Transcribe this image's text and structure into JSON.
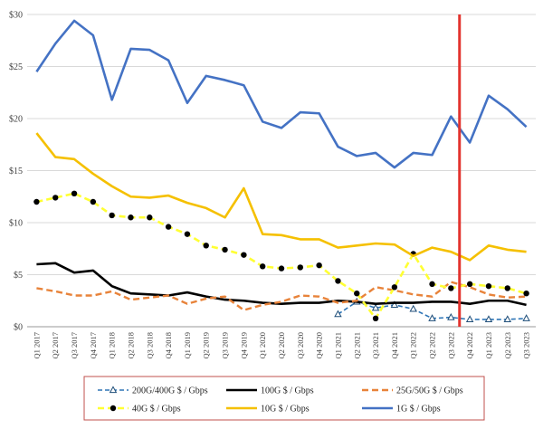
{
  "chart_data": {
    "type": "line",
    "title": "",
    "xlabel": "",
    "ylabel": "",
    "ylim": [
      0,
      30
    ],
    "yticks": [
      0,
      5,
      10,
      15,
      20,
      25,
      30
    ],
    "ytick_labels": [
      "$0",
      "$5",
      "$10",
      "$15",
      "$20",
      "$25",
      "$30"
    ],
    "grid": "horizontal",
    "legend_position": "bottom",
    "categories": [
      "Q1 2017",
      "Q2 2017",
      "Q3 2017",
      "Q4 2017",
      "Q1 2018",
      "Q2 2018",
      "Q3 2018",
      "Q4 2018",
      "Q1 2019",
      "Q2 2019",
      "Q3 2019",
      "Q4 2019",
      "Q1 2020",
      "Q2 2020",
      "Q3 2020",
      "Q4 2020",
      "Q1 2021",
      "Q2 2021",
      "Q3 2021",
      "Q4 2021",
      "Q1 2022",
      "Q2 2022",
      "Q3 2022",
      "Q4 2022",
      "Q1 2023",
      "Q2 2023",
      "Q3 2023"
    ],
    "marker_line": {
      "after_category": "Q3 2022",
      "color": "#e3342f"
    },
    "series": [
      {
        "name": "200G/400G $ / Gbps",
        "color": "#2e75b6",
        "style": "dashed-triangle",
        "values": [
          null,
          null,
          null,
          null,
          null,
          null,
          null,
          null,
          null,
          null,
          null,
          null,
          null,
          null,
          null,
          null,
          1.2,
          2.4,
          1.8,
          2.1,
          1.7,
          0.8,
          0.9,
          0.7,
          0.7,
          0.7,
          0.8
        ]
      },
      {
        "name": "100G $ / Gbps",
        "color": "#000000",
        "style": "solid",
        "values": [
          6.0,
          6.1,
          5.2,
          5.4,
          3.9,
          3.2,
          3.1,
          3.0,
          3.3,
          2.9,
          2.6,
          2.5,
          2.3,
          2.2,
          2.3,
          2.3,
          2.5,
          2.4,
          2.2,
          2.3,
          2.3,
          2.4,
          2.4,
          2.2,
          2.5,
          2.5,
          2.1
        ]
      },
      {
        "name": "25G/50G $ / Gbps",
        "color": "#e8833a",
        "style": "dashed",
        "values": [
          3.7,
          3.4,
          3.0,
          3.0,
          3.4,
          2.6,
          2.8,
          3.0,
          2.2,
          2.7,
          2.9,
          1.6,
          2.1,
          2.4,
          3.0,
          2.9,
          2.3,
          2.5,
          3.8,
          3.5,
          3.1,
          2.9,
          4.3,
          3.8,
          3.1,
          2.8,
          2.9
        ]
      },
      {
        "name": "40G $ / Gbps",
        "color": "#ffff33",
        "style": "dashed-dot",
        "values": [
          12.0,
          12.4,
          12.8,
          12.0,
          10.7,
          10.5,
          10.5,
          9.6,
          8.9,
          7.8,
          7.4,
          6.9,
          5.8,
          5.6,
          5.7,
          5.9,
          4.4,
          3.2,
          0.8,
          3.8,
          7.0,
          4.1,
          3.7,
          4.1,
          3.9,
          3.7,
          3.2
        ]
      },
      {
        "name": "10G $ / Gbps",
        "color": "#f5c000",
        "style": "solid",
        "values": [
          18.6,
          16.3,
          16.1,
          14.7,
          13.5,
          12.5,
          12.4,
          12.6,
          11.9,
          11.4,
          10.5,
          13.3,
          8.9,
          8.8,
          8.4,
          8.4,
          7.6,
          7.8,
          8.0,
          7.9,
          6.8,
          7.6,
          7.2,
          6.4,
          7.8,
          7.4,
          7.2
        ]
      },
      {
        "name": "1G $ / Gbps",
        "color": "#4472c4",
        "style": "solid",
        "values": [
          24.5,
          27.2,
          29.4,
          28.0,
          21.8,
          26.7,
          26.6,
          25.6,
          21.5,
          24.1,
          23.7,
          23.2,
          19.7,
          19.1,
          20.6,
          20.5,
          17.3,
          16.4,
          16.7,
          15.3,
          16.7,
          16.5,
          20.2,
          17.7,
          22.2,
          20.9,
          19.2
        ]
      }
    ]
  }
}
